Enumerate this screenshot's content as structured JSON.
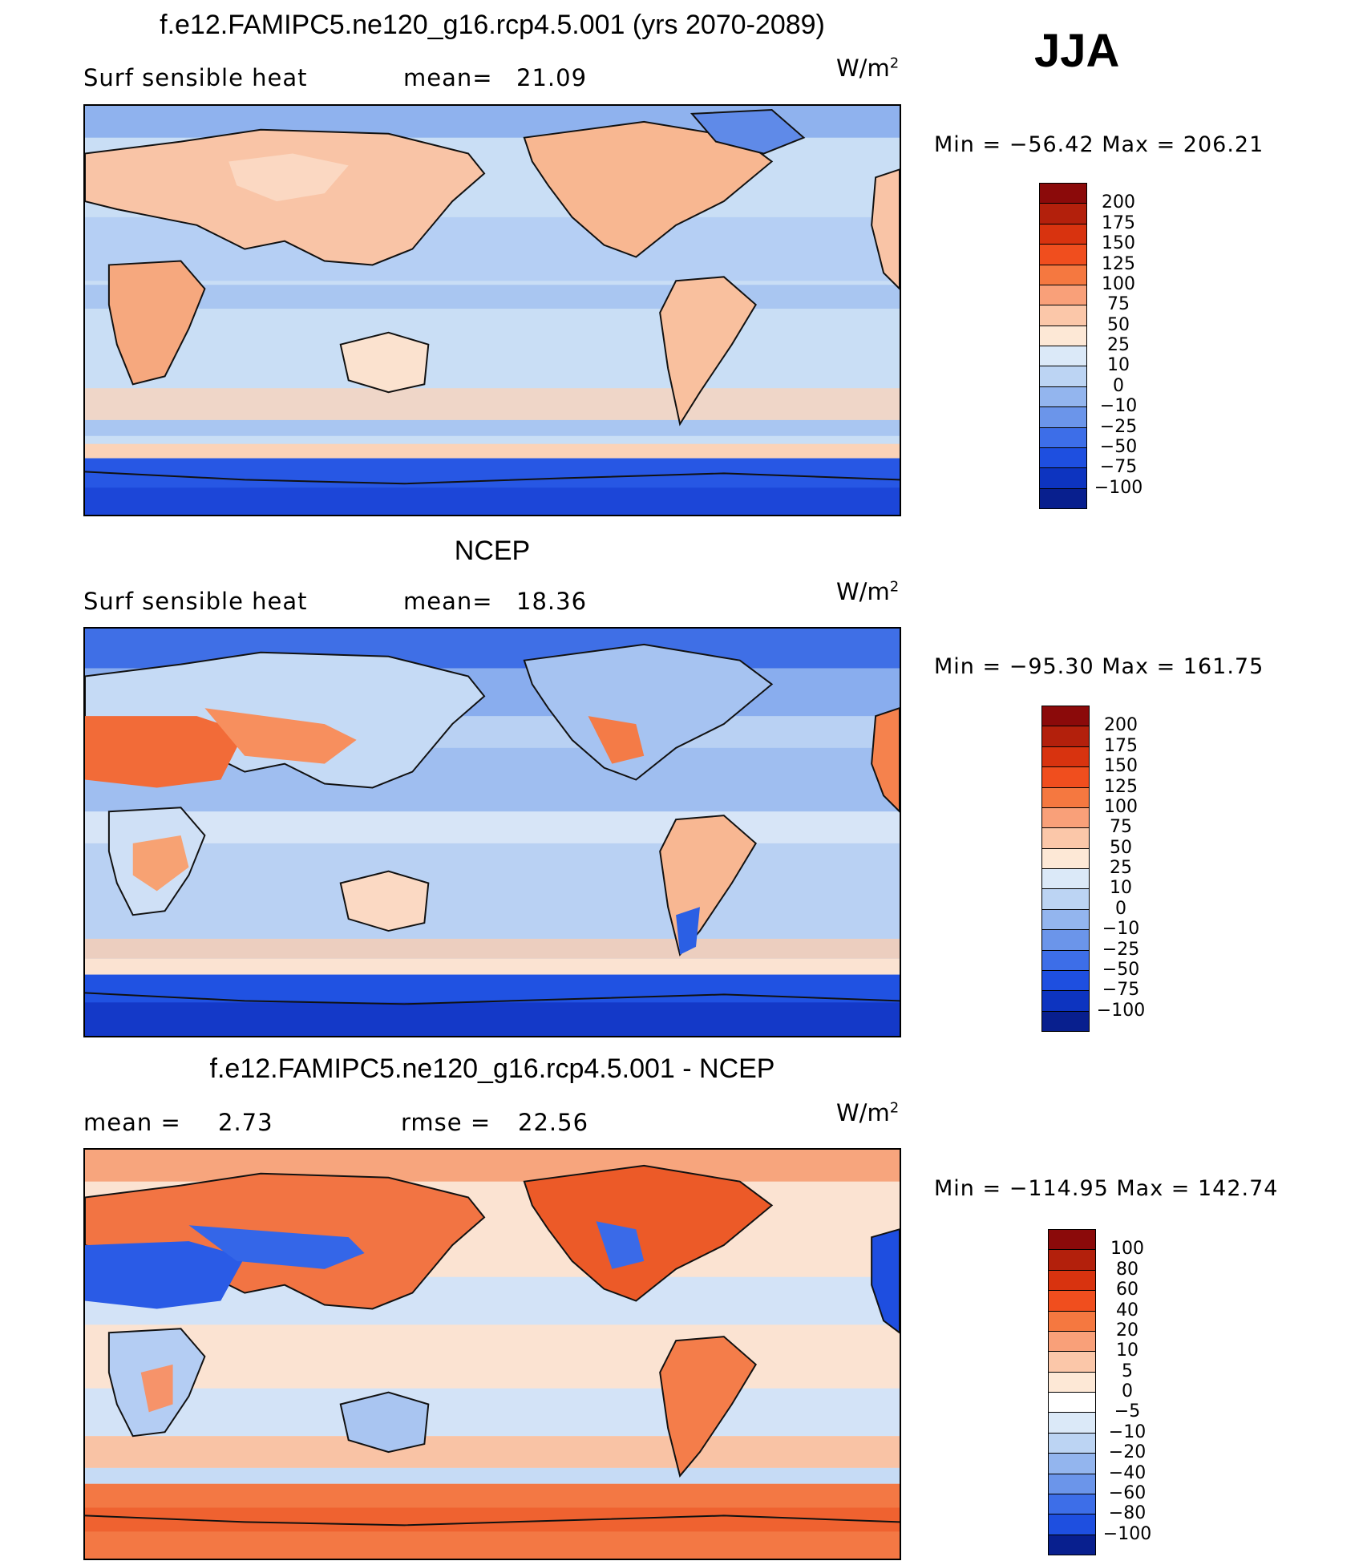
{
  "season": "JJA",
  "panels": [
    {
      "id": "model",
      "title": "f.e12.FAMIPC5.ne120_g16.rcp4.5.001 (yrs 2070-2089)",
      "left_label": "Surf  sensible  heat",
      "stat_label": "mean=",
      "stat_value": "21.09",
      "units": "W/m",
      "units_sup": "2",
      "min_max": "Min  =  −56.42  Max  =  206.21",
      "colorbar_levels": [
        "200",
        "175",
        "150",
        "125",
        "100",
        "75",
        "50",
        "25",
        "10",
        "0",
        "−10",
        "−25",
        "−50",
        "−75",
        "−100"
      ],
      "colorbar_colors": [
        "#8b0a0a",
        "#b3200c",
        "#d8330f",
        "#f04e1e",
        "#f57840",
        "#f9a079",
        "#fbc7a9",
        "#fde8d6",
        "#dbe9f8",
        "#bcd4f3",
        "#93b5ee",
        "#6b95ea",
        "#3d6ee8",
        "#1e4fe0",
        "#0d34c0",
        "#081f8e"
      ]
    },
    {
      "id": "ncep",
      "title": "NCEP",
      "left_label": "Surf  sensible  heat",
      "stat_label": "mean=",
      "stat_value": "18.36",
      "units": "W/m",
      "units_sup": "2",
      "min_max": "Min  =  −95.30  Max  =  161.75",
      "colorbar_levels": [
        "200",
        "175",
        "150",
        "125",
        "100",
        "75",
        "50",
        "25",
        "10",
        "0",
        "−10",
        "−25",
        "−50",
        "−75",
        "−100"
      ],
      "colorbar_colors": [
        "#8b0a0a",
        "#b3200c",
        "#d8330f",
        "#f04e1e",
        "#f57840",
        "#f9a079",
        "#fbc7a9",
        "#fde8d6",
        "#dbe9f8",
        "#bcd4f3",
        "#93b5ee",
        "#6b95ea",
        "#3d6ee8",
        "#1e4fe0",
        "#0d34c0",
        "#081f8e"
      ]
    },
    {
      "id": "diff",
      "title": "f.e12.FAMIPC5.ne120_g16.rcp4.5.001 - NCEP",
      "left_label": "mean  =",
      "left_value": "2.73",
      "stat_label": "rmse  =",
      "stat_value": "22.56",
      "units": "W/m",
      "units_sup": "2",
      "min_max": "Min  =  −114.95  Max  =  142.74",
      "colorbar_levels": [
        "100",
        "80",
        "60",
        "40",
        "20",
        "10",
        "5",
        "0",
        "−5",
        "−10",
        "−20",
        "−40",
        "−60",
        "−80",
        "−100"
      ],
      "colorbar_colors": [
        "#8b0a0a",
        "#b3200c",
        "#d8330f",
        "#f04e1e",
        "#f57840",
        "#f9a079",
        "#fbc7a9",
        "#fde8d6",
        "#ffffff",
        "#dbe9f8",
        "#bcd4f3",
        "#93b5ee",
        "#6b95ea",
        "#3d6ee8",
        "#1e4fe0",
        "#081f8e"
      ]
    }
  ]
}
